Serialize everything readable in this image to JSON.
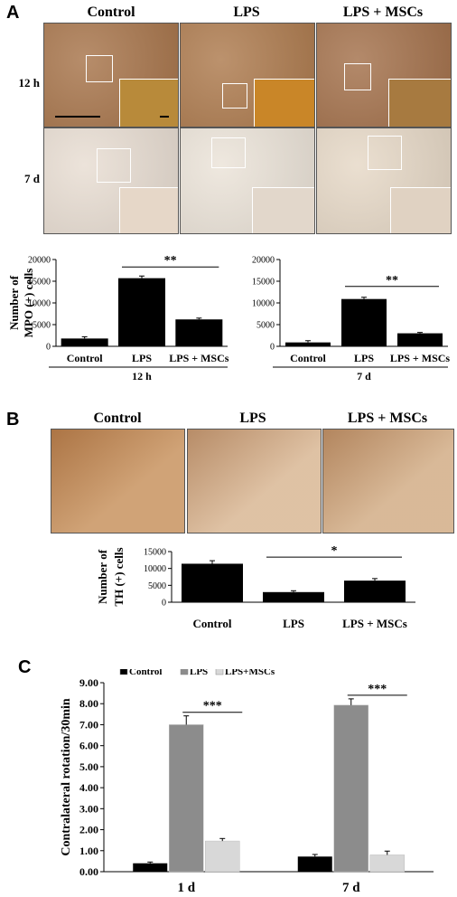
{
  "panel_a": {
    "letter": "A",
    "columns": [
      "Control",
      "LPS",
      "LPS + MSCs"
    ],
    "rows": [
      "12 h",
      "7 d"
    ],
    "micrographs": [
      {
        "base": "#a7744a",
        "inset": "#b88a3a"
      },
      {
        "base": "#ad7a4d",
        "inset": "#c98628"
      },
      {
        "base": "#a3704a",
        "inset": "#a77a40"
      },
      {
        "base": "#e8ddd2",
        "inset": "#e6d7c8"
      },
      {
        "base": "#ebe3d8",
        "inset": "#e2d7cb"
      },
      {
        "base": "#e6d8c6",
        "inset": "#e0d2c2"
      }
    ]
  },
  "panel_b": {
    "letter": "B",
    "columns": [
      "Control",
      "LPS",
      "LPS + MSCs"
    ],
    "micrographs": [
      {
        "base": "#c8935f"
      },
      {
        "base": "#d9b794"
      },
      {
        "base": "#d2ad86"
      }
    ]
  },
  "panel_c": {
    "letter": "C"
  },
  "chart_data": [
    {
      "type": "bar",
      "ylabel": "Number of MPO (+) cells",
      "categories": [
        "Control",
        "LPS",
        "LPS + MSCs"
      ],
      "values": [
        1800,
        15700,
        6200
      ],
      "errors": [
        400,
        500,
        300
      ],
      "group_label": "12 h",
      "yticks": [
        "0",
        "5000",
        "10000",
        "15000",
        "20000"
      ],
      "ylim": [
        0,
        20000
      ],
      "significance": {
        "from": 1,
        "to": 2,
        "label": "**"
      },
      "colors": {
        "bar": "#000000"
      }
    },
    {
      "type": "bar",
      "ylabel": "",
      "categories": [
        "Control",
        "LPS",
        "LPS + MSCs"
      ],
      "values": [
        900,
        10900,
        3000
      ],
      "errors": [
        400,
        400,
        200
      ],
      "group_label": "7 d",
      "yticks": [
        "0",
        "5000",
        "10000",
        "15000",
        "20000"
      ],
      "ylim": [
        0,
        20000
      ],
      "significance": {
        "from": 1,
        "to": 2,
        "label": "**"
      },
      "colors": {
        "bar": "#000000"
      }
    },
    {
      "type": "bar",
      "ylabel": "Number of TH (+) cells",
      "categories": [
        "Control",
        "LPS",
        "LPS + MSCs"
      ],
      "values": [
        11400,
        3000,
        6400
      ],
      "errors": [
        900,
        400,
        600
      ],
      "yticks": [
        "0",
        "5000",
        "10000",
        "15000"
      ],
      "ylim": [
        0,
        15000
      ],
      "significance": {
        "from": 1,
        "to": 2,
        "label": "*"
      },
      "colors": {
        "bar": "#000000"
      }
    },
    {
      "type": "bar",
      "ylabel": "Contralateral rotation/30min",
      "categories": [
        "1 d",
        "7 d"
      ],
      "series": [
        {
          "name": "Control",
          "values": [
            0.4,
            0.72
          ],
          "errors": [
            0.06,
            0.1
          ],
          "color": "#000000"
        },
        {
          "name": "LPS",
          "values": [
            7.0,
            7.93
          ],
          "errors": [
            0.42,
            0.3
          ],
          "color": "#8c8c8c"
        },
        {
          "name": "LPS+MSCs",
          "values": [
            1.46,
            0.8
          ],
          "errors": [
            0.12,
            0.18
          ],
          "color": "#d8d8d8"
        }
      ],
      "yticks": [
        "0.00",
        "1.00",
        "2.00",
        "3.00",
        "4.00",
        "5.00",
        "6.00",
        "7.00",
        "8.00",
        "9.00"
      ],
      "ylim": [
        0,
        9
      ],
      "legend": "top",
      "significance": [
        {
          "group": 0,
          "label": "***"
        },
        {
          "group": 1,
          "label": "***"
        }
      ]
    }
  ]
}
